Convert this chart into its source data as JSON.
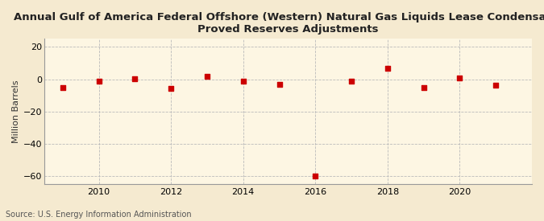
{
  "title": "Annual Gulf of America Federal Offshore (Western) Natural Gas Liquids Lease Condensate,\nProved Reserves Adjustments",
  "ylabel": "Million Barrels",
  "source": "Source: U.S. Energy Information Administration",
  "background_color": "#f5ead0",
  "plot_bg_color": "#fdf6e3",
  "years": [
    2009,
    2010,
    2011,
    2012,
    2013,
    2014,
    2015,
    2016,
    2017,
    2018,
    2019,
    2020,
    2021
  ],
  "values": [
    -5.0,
    -1.2,
    0.3,
    -5.5,
    2.0,
    -1.0,
    -3.0,
    -60.0,
    -1.2,
    7.0,
    -5.0,
    1.0,
    -3.5
  ],
  "marker_color": "#cc0000",
  "marker": "s",
  "marker_size": 4,
  "ylim": [
    -65,
    25
  ],
  "yticks": [
    -60,
    -40,
    -20,
    0,
    20
  ],
  "xlim": [
    2008.5,
    2022
  ],
  "xticks": [
    2010,
    2012,
    2014,
    2016,
    2018,
    2020
  ],
  "grid_color": "#bbbbbb",
  "grid_style": "--",
  "title_fontsize": 9.5,
  "axis_fontsize": 8,
  "source_fontsize": 7
}
